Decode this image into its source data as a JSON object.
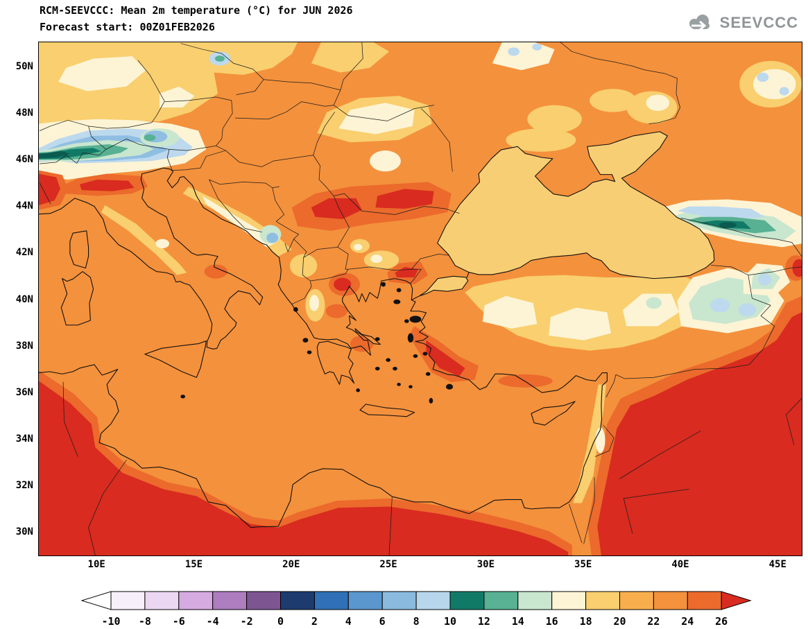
{
  "header": {
    "title": "RCM-SEEVCCC: Mean 2m temperature (°C) for JUN 2026",
    "subtitle": "Forecast start: 00Z01FEB2026"
  },
  "logo": {
    "text": "SEEVCCC"
  },
  "axes": {
    "lat_ticks": [
      {
        "label": "50N",
        "value": 50
      },
      {
        "label": "48N",
        "value": 48
      },
      {
        "label": "46N",
        "value": 46
      },
      {
        "label": "44N",
        "value": 44
      },
      {
        "label": "42N",
        "value": 42
      },
      {
        "label": "40N",
        "value": 40
      },
      {
        "label": "38N",
        "value": 38
      },
      {
        "label": "36N",
        "value": 36
      },
      {
        "label": "34N",
        "value": 34
      },
      {
        "label": "32N",
        "value": 32
      },
      {
        "label": "30N",
        "value": 30
      }
    ],
    "lon_ticks": [
      {
        "label": "10E",
        "value": 10
      },
      {
        "label": "15E",
        "value": 15
      },
      {
        "label": "20E",
        "value": 20
      },
      {
        "label": "25E",
        "value": 25
      },
      {
        "label": "30E",
        "value": 30
      },
      {
        "label": "35E",
        "value": 35
      },
      {
        "label": "40E",
        "value": 40
      },
      {
        "label": "45E",
        "value": 45
      }
    ]
  },
  "colorbar": {
    "tick_labels": [
      "-10",
      "-8",
      "-6",
      "-4",
      "-2",
      "0",
      "2",
      "4",
      "6",
      "8",
      "10",
      "12",
      "14",
      "16",
      "18",
      "20",
      "22",
      "24",
      "26"
    ],
    "segment_colors": [
      "#f7f0fa",
      "#ebd7f2",
      "#d5abe2",
      "#ad7dbf",
      "#7d5591",
      "#1d3b6f",
      "#2f70b6",
      "#5a97ce",
      "#8abade",
      "#b7d6ec",
      "#117a67",
      "#57b192",
      "#c9e6cf",
      "#fdf4d5",
      "#f9cf6f",
      "#f8ae4c",
      "#f4913c",
      "#eb6a2c"
    ],
    "left_arrow_color": "#ffffff",
    "right_arrow_color": "#d92b20"
  },
  "chart_data": {
    "type": "heatmap",
    "title": "RCM-SEEVCCC: Mean 2m temperature (°C) for JUN 2026",
    "subtitle": "Forecast start: 00Z01FEB2026",
    "units": "°C",
    "lat_range": [
      29,
      51
    ],
    "lon_range": [
      7,
      46
    ],
    "contour_levels": [
      -10,
      -8,
      -6,
      -4,
      -2,
      0,
      2,
      4,
      6,
      8,
      10,
      12,
      14,
      16,
      18,
      20,
      22,
      24,
      26
    ],
    "legend_position": "bottom"
  }
}
